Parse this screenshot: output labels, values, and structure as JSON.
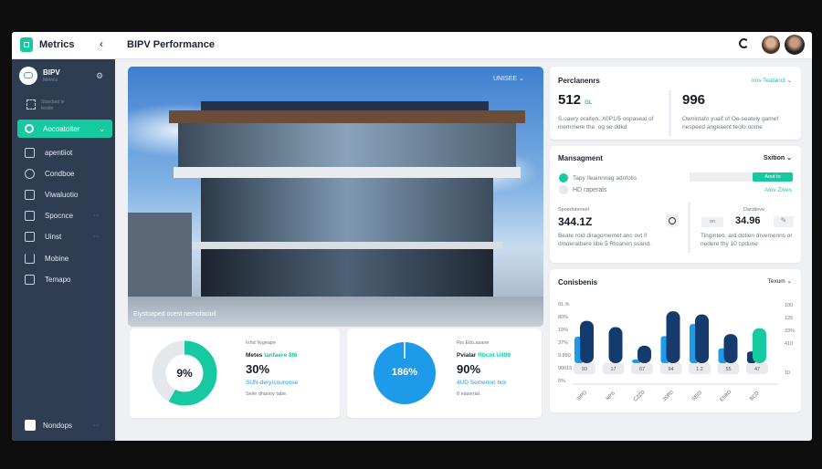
{
  "header": {
    "app_title": "Metrics",
    "page_title": "BIPV Performance",
    "refresh_icon": "refresh-icon"
  },
  "sidebar": {
    "profile": {
      "name": "BIPV",
      "subtitle": "Metrics"
    },
    "section_label": "Standard le feside",
    "items": [
      {
        "label": "Aocoatoiter",
        "active": true,
        "icon": "search-icon"
      },
      {
        "label": "apentiiot",
        "icon": "database-icon"
      },
      {
        "label": "Condboe",
        "icon": "gauge-icon"
      },
      {
        "label": "Viwaluotio",
        "icon": "document-icon"
      },
      {
        "label": "Spocnce",
        "icon": "home-icon"
      },
      {
        "label": "Uinst",
        "icon": "list-icon"
      },
      {
        "label": "Mobine",
        "icon": "tray-icon"
      },
      {
        "label": "Temapo",
        "icon": "file-icon"
      }
    ],
    "footer": {
      "label": "Nondops"
    }
  },
  "hero": {
    "dropdown": "UNISEE",
    "caption": "Eiystoaped ocest nemofaciuil"
  },
  "gauges": [
    {
      "center": "9%",
      "fraction": 0.58,
      "color": "#17c9a0",
      "small": "Inhd Ilvgeape",
      "label": "Metes",
      "label_accent": "lanfaere 8f6",
      "value": "30%",
      "link": "SUN-dery/couronse",
      "note": "Seiie dhanoy tabe."
    },
    {
      "center": "186%",
      "fraction": 1.0,
      "color": "#1e9be8",
      "small": "Ris Eito.asane",
      "label": "Pvialar",
      "label_accent": "Rbcot U499",
      "value": "90%",
      "link": "4UD Semenon hck",
      "note": "8 eiaserial."
    }
  ],
  "performance": {
    "title": "Perclanenrs",
    "dropdown": "Ims Teatanct",
    "left": {
      "value": "512",
      "unit": "GL",
      "desc": "S.uaery eraiten. X0P1/5 oopaseal of memmere the. og se ddkd"
    },
    "right": {
      "value": "996",
      "desc": "Ownintafo yuaif of Oe-seately gamef nespeed angeaent teolo oome"
    }
  },
  "management": {
    "title": "Mansagment",
    "dropdown": "Sxition",
    "options": [
      {
        "label": "Tapy /leainnnag adofotis",
        "on": true
      },
      {
        "label": "HD raperals",
        "on": false
      }
    ],
    "button": "Aout to",
    "link": "Alov Zives",
    "left": {
      "label": "Spoeduteneel",
      "value": "344.1Z",
      "desc": "Beate roid diragomemet anc ovt if dmderatbere tibe 5 Rtoanon ssand."
    },
    "right": {
      "label": "Dacdiove",
      "chip": "on",
      "value": "34.96",
      "desc": "Tinginteo, ard dotien drvemenns or nedere thy 10 cpdune"
    }
  },
  "chart_data": {
    "type": "bar",
    "title": "Conisbenis",
    "dropdown": "Texum",
    "categories": [
      "SIPD",
      "NPS",
      "CZZD",
      "JSPD",
      "SEID",
      "ESBD",
      "BCD"
    ],
    "series": [
      {
        "values": [
          50,
          0,
          7,
          51,
          74,
          28,
          22
        ]
      },
      {
        "values": [
          80,
          68,
          33,
          98,
          92,
          55,
          66
        ]
      }
    ],
    "bar_colors": {
      "front": "#1e9be8",
      "back": "#143a6e",
      "highlight": "#17c9a0"
    },
    "data_labels": [
      "93",
      "17",
      "67",
      "94",
      "1.2",
      "55",
      "47"
    ],
    "left_ticks": [
      "91.%",
      "80%",
      "19%",
      "37%",
      "9.890",
      "90015",
      "5%"
    ],
    "right_ticks": [
      "100",
      "125",
      "33%",
      "410",
      "10"
    ],
    "ylim": [
      0,
      100
    ],
    "grid": false,
    "legend": "none"
  }
}
